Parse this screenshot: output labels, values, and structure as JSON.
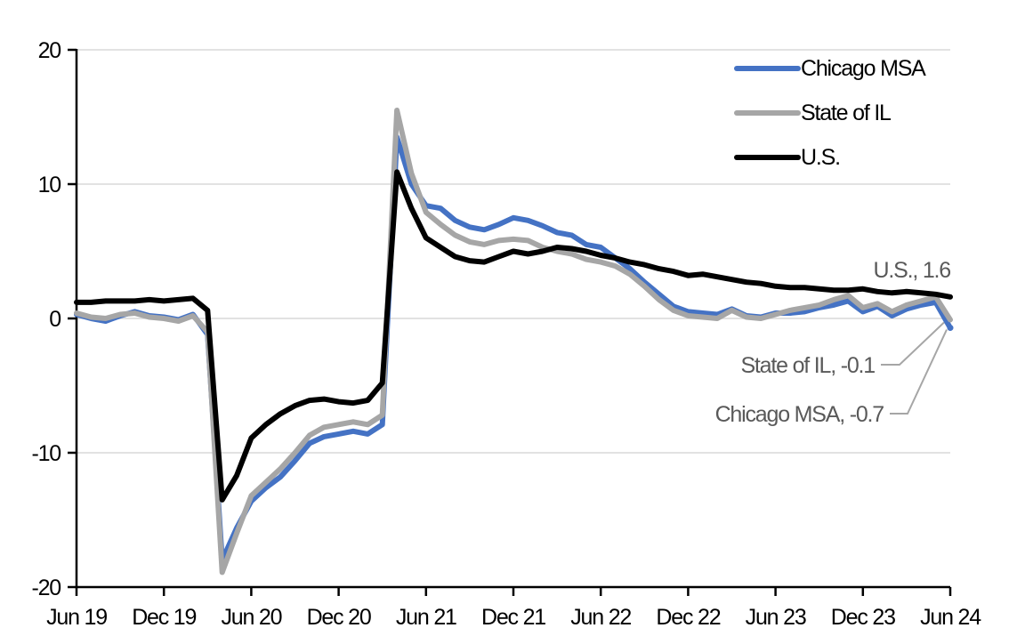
{
  "chart_data": {
    "type": "line",
    "title": "",
    "xlabel": "",
    "ylabel": "",
    "ylim": [
      -20,
      20
    ],
    "y_ticks": [
      20,
      10,
      0,
      -10,
      -20
    ],
    "grid": "horizontal",
    "legend_position": "top-right",
    "x_tick_labels": [
      "Jun 19",
      "Dec 19",
      "Jun 20",
      "Dec 20",
      "Jun 21",
      "Dec 21",
      "Jun 22",
      "Dec 22",
      "Jun 23",
      "Dec 23",
      "Jun 24"
    ],
    "x": [
      "Jun 19",
      "Jul 19",
      "Aug 19",
      "Sep 19",
      "Oct 19",
      "Nov 19",
      "Dec 19",
      "Jan 20",
      "Feb 20",
      "Mar 20",
      "Apr 20",
      "May 20",
      "Jun 20",
      "Jul 20",
      "Aug 20",
      "Sep 20",
      "Oct 20",
      "Nov 20",
      "Dec 20",
      "Jan 21",
      "Feb 21",
      "Mar 21",
      "Apr 21",
      "May 21",
      "Jun 21",
      "Jul 21",
      "Aug 21",
      "Sep 21",
      "Oct 21",
      "Nov 21",
      "Dec 21",
      "Jan 22",
      "Feb 22",
      "Mar 22",
      "Apr 22",
      "May 22",
      "Jun 22",
      "Jul 22",
      "Aug 22",
      "Sep 22",
      "Oct 22",
      "Nov 22",
      "Dec 22",
      "Jan 23",
      "Feb 23",
      "Mar 23",
      "Apr 23",
      "May 23",
      "Jun 23",
      "Jul 23",
      "Aug 23",
      "Sep 23",
      "Oct 23",
      "Nov 23",
      "Dec 23",
      "Jan 24",
      "Feb 24",
      "Mar 24",
      "Apr 24",
      "May 24",
      "Jun 24"
    ],
    "series": [
      {
        "name": "Chicago MSA",
        "color": "#4472C4",
        "last_value": -0.7,
        "values": [
          0.3,
          0.0,
          -0.2,
          0.2,
          0.5,
          0.2,
          0.1,
          -0.1,
          0.3,
          -1.2,
          -18.0,
          -15.6,
          -13.6,
          -12.6,
          -11.8,
          -10.6,
          -9.3,
          -8.8,
          -8.6,
          -8.4,
          -8.6,
          -7.9,
          13.5,
          10.0,
          8.4,
          8.2,
          7.3,
          6.8,
          6.6,
          7.0,
          7.5,
          7.3,
          6.9,
          6.4,
          6.2,
          5.5,
          5.3,
          4.5,
          3.7,
          2.7,
          1.8,
          0.9,
          0.5,
          0.4,
          0.3,
          0.7,
          0.2,
          0.1,
          0.4,
          0.4,
          0.5,
          0.8,
          1.0,
          1.3,
          0.5,
          0.9,
          0.2,
          0.7,
          1.0,
          1.2,
          -0.7
        ]
      },
      {
        "name": "State of IL",
        "color": "#A6A6A6",
        "last_value": -0.1,
        "values": [
          0.4,
          0.1,
          0.0,
          0.3,
          0.4,
          0.1,
          0.0,
          -0.2,
          0.2,
          -1.0,
          -18.9,
          -16.0,
          -13.2,
          -12.2,
          -11.2,
          -10.0,
          -8.7,
          -8.1,
          -7.9,
          -7.7,
          -7.9,
          -7.2,
          15.5,
          10.8,
          7.9,
          7.0,
          6.2,
          5.7,
          5.5,
          5.8,
          5.9,
          5.8,
          5.3,
          5.0,
          4.8,
          4.4,
          4.2,
          3.9,
          3.3,
          2.4,
          1.4,
          0.6,
          0.2,
          0.1,
          0.0,
          0.6,
          0.1,
          0.0,
          0.3,
          0.6,
          0.8,
          1.0,
          1.4,
          1.7,
          0.8,
          1.1,
          0.5,
          1.0,
          1.3,
          1.6,
          -0.1
        ]
      },
      {
        "name": "U.S.",
        "color": "#000000",
        "last_value": 1.6,
        "values": [
          1.2,
          1.2,
          1.3,
          1.3,
          1.3,
          1.4,
          1.3,
          1.4,
          1.5,
          0.6,
          -13.5,
          -11.7,
          -8.9,
          -7.9,
          -7.1,
          -6.5,
          -6.1,
          -6.0,
          -6.2,
          -6.3,
          -6.1,
          -4.8,
          10.9,
          8.2,
          6.0,
          5.3,
          4.6,
          4.3,
          4.2,
          4.6,
          5.0,
          4.8,
          5.0,
          5.3,
          5.2,
          5.0,
          4.7,
          4.5,
          4.2,
          4.0,
          3.7,
          3.5,
          3.2,
          3.3,
          3.1,
          2.9,
          2.7,
          2.6,
          2.4,
          2.3,
          2.3,
          2.2,
          2.1,
          2.1,
          2.2,
          2.0,
          1.9,
          2.0,
          1.9,
          1.8,
          1.6
        ]
      }
    ],
    "annotations": [
      {
        "label": "U.S., 1.6",
        "series": "U.S.",
        "value": 1.6
      },
      {
        "label": "State of IL, -0.1",
        "series": "State of IL",
        "value": -0.1
      },
      {
        "label": "Chicago MSA, -0.7",
        "series": "Chicago MSA",
        "value": -0.7
      }
    ]
  },
  "colors": {
    "chicago_blue": "#4472C4",
    "illinois_gray": "#A6A6A6",
    "us_black": "#000000",
    "gridline": "#D9D9D9",
    "annotation_text": "#595959",
    "leader_line": "#A6A6A6",
    "axis": "#000000",
    "background": "#FFFFFF"
  }
}
